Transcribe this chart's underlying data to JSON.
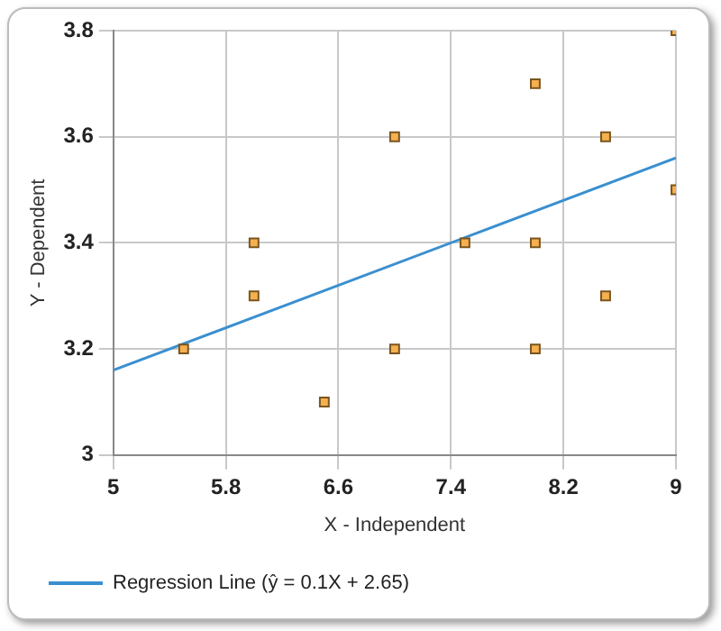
{
  "chart_data": {
    "type": "scatter",
    "xlabel": "X - Independent",
    "ylabel": "Y - Dependent",
    "xlim": [
      5,
      9
    ],
    "xticks": [
      5,
      5.8,
      6.6,
      7.4,
      8.2,
      9
    ],
    "ylim": [
      3,
      3.8
    ],
    "yticks": [
      3,
      3.2,
      3.4,
      3.6,
      3.8
    ],
    "grid": true,
    "legend": "bottom",
    "series": [
      {
        "type": "scatter",
        "color": "#f5b04f",
        "marker": "square",
        "x": [
          5.5,
          6,
          6,
          6.5,
          7,
          7,
          7.5,
          8,
          8,
          8,
          8.5,
          8.5,
          9,
          9
        ],
        "values": [
          3.2,
          3.4,
          3.3,
          3.1,
          3.6,
          3.2,
          3.4,
          3.7,
          3.4,
          3.2,
          3.6,
          3.3,
          3.8,
          3.5
        ]
      },
      {
        "type": "line",
        "name": "Regression Line (ŷ = 0.1X + 2.65)",
        "color": "#3a8fd0",
        "marker": "none",
        "x": [
          5,
          9
        ],
        "values": [
          3.16,
          3.56
        ]
      }
    ]
  }
}
